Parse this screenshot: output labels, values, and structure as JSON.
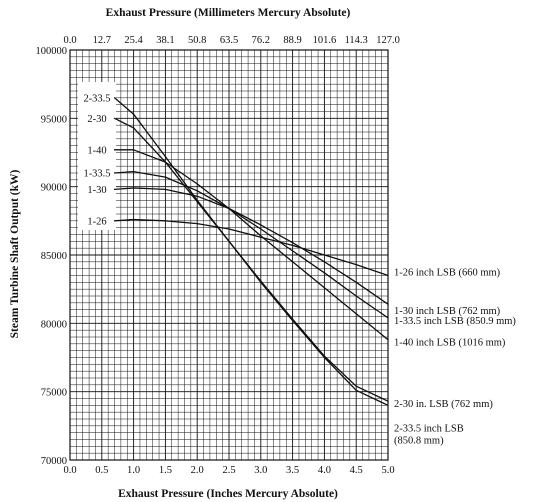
{
  "chart_data": {
    "type": "line",
    "title": "",
    "top_axis_label": "Exhaust Pressure (Millimeters Mercury Absolute)",
    "top_tick_labels": [
      "0.0",
      "12.7",
      "25.4",
      "38.1",
      "50.8",
      "63.5",
      "76.2",
      "88.9",
      "101.6",
      "114.3",
      "127.0"
    ],
    "xlabel": "Exhaust Pressure (Inches Mercury Absolute)",
    "ylabel": "Steam Turbine Shaft Output (kW)",
    "x_tick_labels": [
      "0.0",
      "0.5",
      "1.0",
      "1.5",
      "2.0",
      "2.5",
      "3.0",
      "3.5",
      "4.0",
      "4.5",
      "5.0"
    ],
    "y_tick_labels": [
      "70000",
      "75000",
      "80000",
      "85000",
      "90000",
      "95000",
      "100000"
    ],
    "xlim": [
      0,
      5
    ],
    "ylim": [
      70000,
      100000
    ],
    "grid": true,
    "series": [
      {
        "name": "1-26 inch LSB (660 mm)",
        "x": [
          0.7,
          1.0,
          1.5,
          2.0,
          2.5,
          3.0,
          3.5,
          4.0,
          4.5,
          5.0
        ],
        "values": [
          87500,
          87600,
          87500,
          87300,
          86900,
          86300,
          85700,
          85000,
          84300,
          83500
        ]
      },
      {
        "name": "1-30 inch LSB (762 mm)",
        "x": [
          0.7,
          1.0,
          1.5,
          2.0,
          2.5,
          3.0,
          3.5,
          4.0,
          4.5,
          5.0
        ],
        "values": [
          89800,
          89900,
          89800,
          89300,
          88400,
          87200,
          85900,
          84500,
          83000,
          81400
        ]
      },
      {
        "name": "1-33.5 inch LSB (850.9 mm)",
        "x": [
          0.7,
          1.0,
          1.5,
          2.0,
          2.5,
          3.0,
          3.5,
          4.0,
          4.5,
          5.0
        ],
        "values": [
          91000,
          91100,
          90700,
          89700,
          88400,
          86900,
          85300,
          83700,
          82000,
          80400
        ]
      },
      {
        "name": "1-40 inch LSB (1016 mm)",
        "x": [
          0.7,
          1.0,
          1.5,
          2.0,
          2.5,
          3.0,
          3.5,
          4.0,
          4.5,
          5.0
        ],
        "values": [
          92700,
          92700,
          91800,
          90200,
          88400,
          86400,
          84500,
          82600,
          80700,
          78800
        ]
      },
      {
        "name": "2-30 in. LSB (762 mm)",
        "x": [
          0.7,
          1.0,
          1.5,
          2.0,
          2.5,
          3.0,
          3.5,
          4.0,
          4.5,
          5.0
        ],
        "values": [
          95000,
          94300,
          91800,
          88900,
          86000,
          83100,
          80300,
          77600,
          75400,
          74300
        ]
      },
      {
        "name": "2-33.5 inch LSB (850.8 mm)",
        "x": [
          0.7,
          1.0,
          1.5,
          2.0,
          2.5,
          3.0,
          3.5,
          4.0,
          4.5,
          5.0
        ],
        "values": [
          96500,
          95300,
          92200,
          89000,
          86000,
          83000,
          80200,
          77500,
          75100,
          74000
        ]
      }
    ],
    "left_labels": [
      "2-33.5",
      "2-30",
      "1-40",
      "1-33.5",
      "1-30",
      "1-26"
    ],
    "right_labels": [
      [
        "1-26 inch LSB (660 mm)"
      ],
      [
        "1-30 inch LSB (762 mm)"
      ],
      [
        "1-33.5 inch LSB (850.9 mm)"
      ],
      [
        "1-40 inch LSB (1016 mm)"
      ],
      [
        "2-30 in. LSB (762 mm)"
      ],
      [
        "2-33.5 inch LSB",
        "(850.8 mm)"
      ]
    ]
  }
}
